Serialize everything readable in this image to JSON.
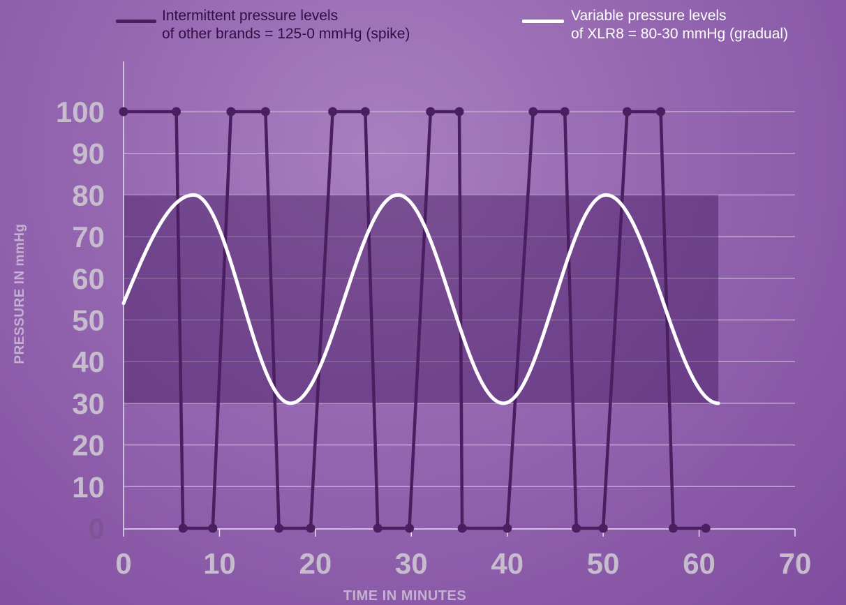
{
  "chart_data": {
    "type": "line",
    "xlabel": "TIME IN MINUTES",
    "ylabel": "PRESSURE IN mmHg",
    "xlim": [
      0,
      70
    ],
    "ylim": [
      0,
      100
    ],
    "x_ticks": [
      "0",
      "10",
      "20",
      "30",
      "40",
      "50",
      "60",
      "70"
    ],
    "y_ticks": [
      "0",
      "10",
      "20",
      "30",
      "40",
      "50",
      "60",
      "70",
      "80",
      "90",
      "100"
    ],
    "grid": true,
    "legend_position": "top",
    "band": {
      "y_low": 30,
      "y_high": 80,
      "x_start": 0,
      "x_end": 62
    },
    "legend": [
      {
        "line1": "Intermittent pressure levels",
        "line2": "of other brands = 125-0 mmHg (spike)",
        "color": "#4a1f60"
      },
      {
        "line1": "Variable pressure levels",
        "line2": "of XLR8 = 80-30 mmHg (gradual)",
        "color": "#ffffff"
      }
    ],
    "series": [
      {
        "style": "spike",
        "color": "#4a1f60",
        "x": [
          0,
          5.5,
          6.2,
          9.3,
          11.2,
          14.8,
          16.2,
          19.5,
          21.8,
          25.2,
          26.5,
          29.8,
          32.0,
          35.0,
          35.3,
          40.0,
          42.7,
          46.0,
          47.2,
          50.0,
          52.5,
          56.0,
          57.3,
          60.7
        ],
        "y": [
          100,
          100,
          0,
          0,
          100,
          100,
          0,
          0,
          100,
          100,
          0,
          0,
          100,
          100,
          0,
          0,
          100,
          100,
          0,
          0,
          100,
          100,
          0,
          0
        ]
      },
      {
        "style": "smooth",
        "color": "#ffffff",
        "x_start": 0,
        "x_end": 62,
        "min": 30,
        "max": 80,
        "peaks_x": [
          7.3,
          28.6,
          50.3
        ],
        "troughs_x": [
          17.4,
          39.6,
          62
        ],
        "start_y": 54
      }
    ]
  }
}
